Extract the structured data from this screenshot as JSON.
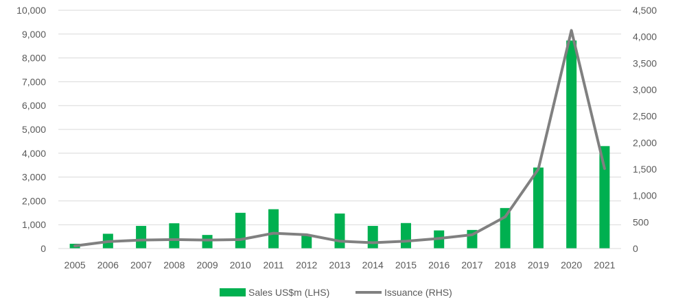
{
  "chart_data": {
    "type": "bar",
    "categories": [
      "2005",
      "2006",
      "2007",
      "2008",
      "2009",
      "2010",
      "2011",
      "2012",
      "2013",
      "2014",
      "2015",
      "2016",
      "2017",
      "2018",
      "2019",
      "2020",
      "2021"
    ],
    "series": [
      {
        "name": "Sales US$m (LHS)",
        "type": "bar",
        "axis": "left",
        "color": "#00b050",
        "values": [
          200,
          620,
          950,
          1060,
          570,
          1500,
          1650,
          580,
          1470,
          950,
          1070,
          760,
          780,
          1700,
          3400,
          8730,
          4300
        ]
      },
      {
        "name": "Issuance (RHS)",
        "type": "line",
        "axis": "right",
        "color": "#808080",
        "values": [
          50,
          130,
          160,
          170,
          160,
          170,
          290,
          260,
          140,
          110,
          140,
          190,
          260,
          600,
          1500,
          4120,
          1510
        ]
      }
    ],
    "left_axis": {
      "ylim": [
        0,
        10000
      ],
      "ticks": [
        0,
        1000,
        2000,
        3000,
        4000,
        5000,
        6000,
        7000,
        8000,
        9000,
        10000
      ],
      "tick_labels": [
        "0",
        "1,000",
        "2,000",
        "3,000",
        "4,000",
        "5,000",
        "6,000",
        "7,000",
        "8,000",
        "9,000",
        "10,000"
      ]
    },
    "right_axis": {
      "ylim": [
        0,
        4500
      ],
      "ticks": [
        0,
        500,
        1000,
        1500,
        2000,
        2500,
        3000,
        3500,
        4000,
        4500
      ],
      "tick_labels": [
        "0",
        "500",
        "1,000",
        "1,500",
        "2,000",
        "2,500",
        "3,000",
        "3,500",
        "4,000",
        "4,500"
      ]
    },
    "grid": true,
    "legend": {
      "placement": "bottom",
      "entries": [
        "Sales US$m (LHS)",
        "Issuance (RHS)"
      ]
    },
    "title": "",
    "xlabel": "",
    "ylabel": ""
  }
}
